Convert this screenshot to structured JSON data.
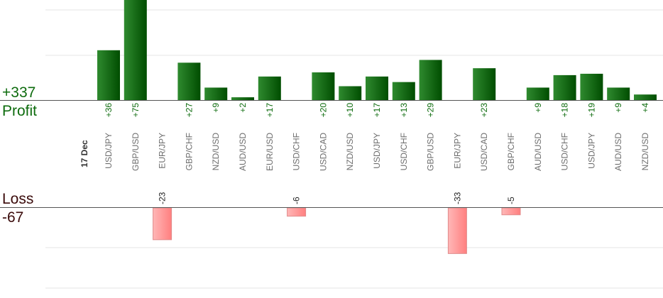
{
  "chart_data": {
    "type": "bar",
    "date_label": "17 Dec",
    "profit": {
      "total_label": "+337",
      "label": "Profit"
    },
    "loss": {
      "total_label": "-67",
      "label": "Loss"
    },
    "grid": true,
    "colors": {
      "profit_light": "#2f8a2f",
      "profit_dark": "#004d00",
      "loss_light": "#ffb7b7",
      "loss_dark": "#ff7f7f",
      "loss_stroke": "#e08a8a",
      "profit_text": "#0d6b0d",
      "loss_text": "#3a0a0a",
      "value_loss_text": "#222222",
      "axis": "#555555",
      "grid": "#e6e6e6"
    },
    "categories": [
      "USD/JPY",
      "GBP/USD",
      "EUR/JPY",
      "GBP/CHF",
      "NZD/USD",
      "AUD/USD",
      "EUR/USD",
      "USD/CHF",
      "USD/CAD",
      "NZD/USD",
      "USD/JPY",
      "USD/CHF",
      "GBP/USD",
      "EUR/JPY",
      "USD/CAD",
      "GBP/CHF",
      "AUD/USD",
      "USD/CHF",
      "USD/JPY",
      "AUD/USD",
      "NZD/USD"
    ],
    "values": [
      36,
      75,
      -23,
      27,
      9,
      2,
      17,
      -6,
      20,
      10,
      17,
      13,
      29,
      -33,
      23,
      -5,
      9,
      18,
      19,
      9,
      4
    ],
    "value_labels": [
      "+36",
      "+75",
      "-23",
      "+27",
      "+9",
      "+2",
      "+17",
      "-6",
      "+20",
      "+10",
      "+17",
      "+13",
      "+29",
      "-33",
      "+23",
      "-5",
      "+9",
      "+18",
      "+19",
      "+9",
      "+4"
    ]
  }
}
